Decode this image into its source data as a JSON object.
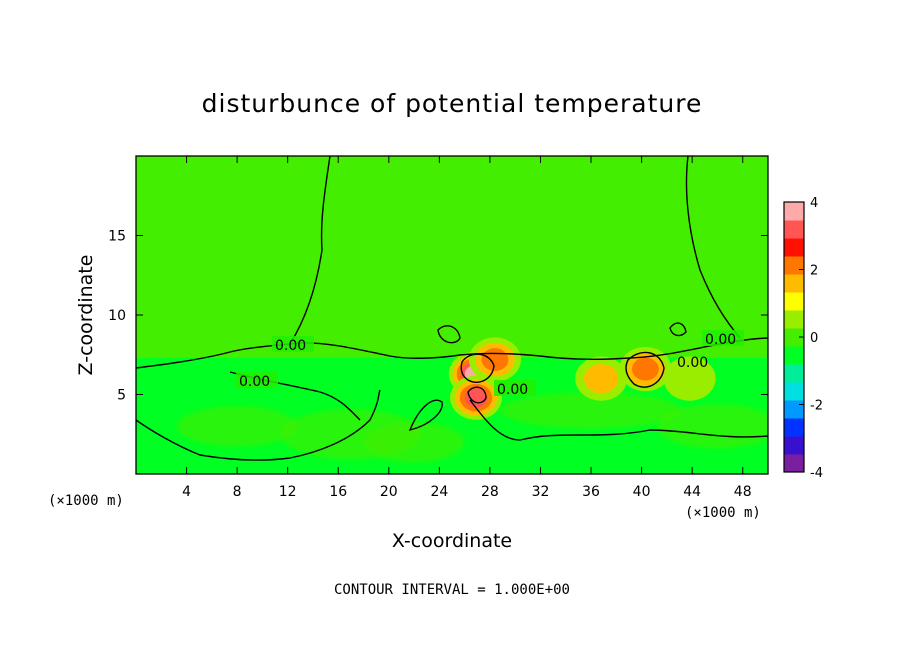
{
  "chart_data": {
    "type": "heatmap",
    "title": "disturbunce of potential temperature",
    "xlabel": "X-coordinate",
    "ylabel": "Z-coordinate",
    "x_unit": "(×1000 m)",
    "y_unit": "(×1000 m)",
    "xlim": [
      0,
      50
    ],
    "ylim": [
      0,
      20
    ],
    "x_ticks": [
      4,
      8,
      12,
      16,
      20,
      24,
      28,
      32,
      36,
      40,
      44,
      48
    ],
    "y_ticks": [
      5,
      10,
      15
    ],
    "colorbar": {
      "min": -4,
      "max": 4,
      "ticks": [
        -4,
        -2,
        0,
        2,
        4
      ],
      "colors": [
        "#7a1fa0",
        "#3a10d0",
        "#0033ff",
        "#0099ff",
        "#00e0e0",
        "#00ee99",
        "#00ff22",
        "#44ee00",
        "#99ee00",
        "#ffff00",
        "#ffbb00",
        "#ff7700",
        "#ff1100",
        "#ff5555",
        "#ffaaaa"
      ]
    },
    "field": {
      "background_value": 0.0,
      "lower_layer_value": -0.6,
      "lower_layer_top_z": 7.3,
      "hotspots": [
        {
          "x": 26.8,
          "z": 6.3,
          "value": 4.2
        },
        {
          "x": 28.4,
          "z": 7.2,
          "value": 3.0
        },
        {
          "x": 26.9,
          "z": 4.8,
          "value": 3.4
        },
        {
          "x": 40.3,
          "z": 6.6,
          "value": 2.8
        },
        {
          "x": 36.8,
          "z": 6.0,
          "value": 1.6
        },
        {
          "x": 43.8,
          "z": 6.0,
          "value": 1.3
        }
      ]
    },
    "contour_labels": [
      "0.00",
      "0.00",
      "0.00",
      "0.00",
      "0.00"
    ],
    "contour_interval_text": "CONTOUR INTERVAL =  1.000E+00"
  }
}
